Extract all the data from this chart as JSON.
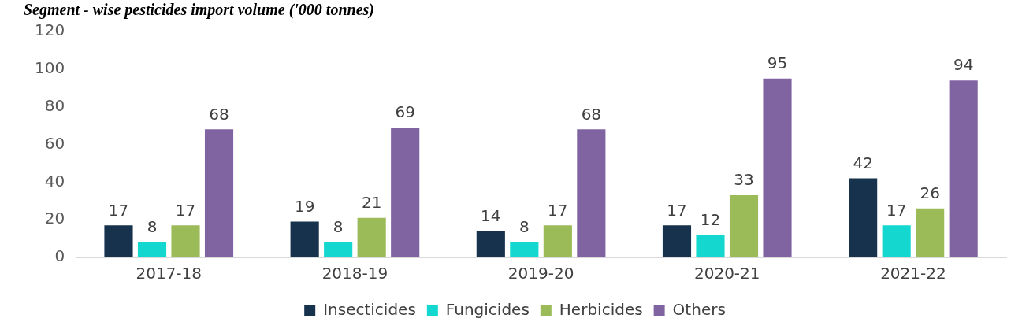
{
  "chart_data": {
    "type": "bar",
    "title": "Segment - wise pesticides import volume ('000 tonnes)",
    "categories": [
      "2017-18",
      "2018-19",
      "2019-20",
      "2020-21",
      "2021-22"
    ],
    "series": [
      {
        "name": "Insecticides",
        "color": "#17324d",
        "values": [
          17,
          19,
          14,
          17,
          42
        ]
      },
      {
        "name": "Fungicides",
        "color": "#14d8d0",
        "values": [
          8,
          8,
          8,
          12,
          17
        ]
      },
      {
        "name": "Herbicides",
        "color": "#9bbb59",
        "values": [
          17,
          21,
          17,
          33,
          26
        ]
      },
      {
        "name": "Others",
        "color": "#8064a2",
        "values": [
          68,
          69,
          68,
          95,
          94
        ]
      }
    ],
    "ylim": [
      0,
      120
    ],
    "yticks": [
      0,
      20,
      40,
      60,
      80,
      100,
      120
    ],
    "grid": false,
    "legend": "bottom",
    "data_labels": true
  }
}
